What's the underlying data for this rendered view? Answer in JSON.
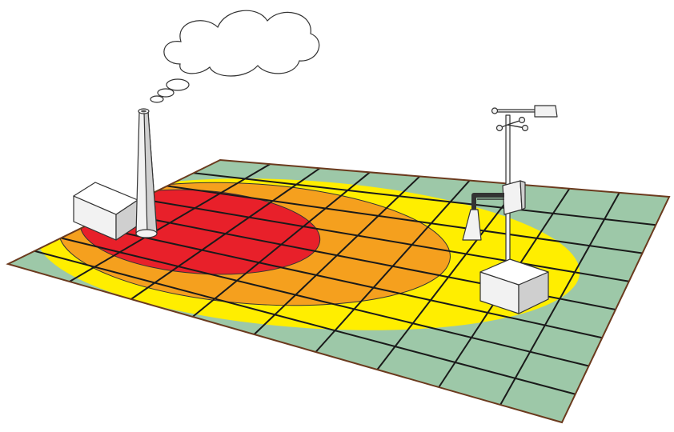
{
  "diagram": {
    "type": "air-dispersion-illustration",
    "colors": {
      "background_zone": "#9dc8a8",
      "low_zone": "#ffee00",
      "medium_zone": "#f5a01e",
      "high_zone": "#e8202a",
      "grid_line": "#1a1a1a",
      "ground_border": "#6b3a1e",
      "structure_fill": "#f2f2f2",
      "structure_shade": "#cfcfcf",
      "structure_outline": "#333333",
      "smoke_fill": "#ffffff"
    },
    "icons": {
      "source": "smokestack-icon",
      "source_building": "factory-building-icon",
      "emission": "smoke-cloud-icon",
      "receptor": "weather-station-icon",
      "receptor_building": "station-shelter-icon"
    },
    "concentration_zones": [
      "background",
      "low",
      "medium",
      "high"
    ]
  }
}
